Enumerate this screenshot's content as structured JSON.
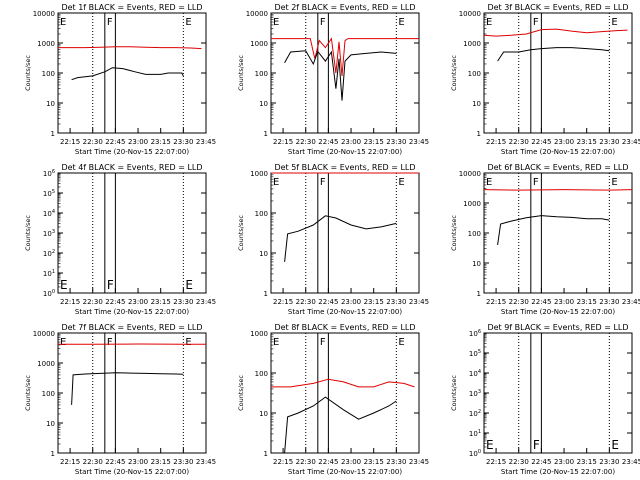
{
  "figure": {
    "xlabel": "Start Time (20-Nov-15 22:07:00)",
    "ylabel": "Counts/sec",
    "x_ticks": [
      "22:15",
      "22:30",
      "22:45",
      "23:00",
      "23:15",
      "23:30",
      "23:45"
    ],
    "markers": {
      "dotted_times": [
        "22:30",
        "23:30"
      ],
      "solid_times": [
        "22:38",
        "22:45"
      ]
    },
    "colors": {
      "events": "#000000",
      "lld": "#e00000"
    }
  },
  "chart_data": [
    {
      "type": "line",
      "title": "Det 1f BLACK = Events, RED = LLD",
      "y_scale": "log",
      "ylim": [
        1,
        10000
      ],
      "y_ticks": [
        "1",
        "10",
        "100",
        "1000",
        "10000"
      ],
      "letters": [
        "E",
        "F",
        "E"
      ],
      "series": [
        {
          "name": "LLD",
          "color": "#e00000",
          "x": [
            "22:07",
            "22:15",
            "22:25",
            "22:35",
            "22:45",
            "22:55",
            "23:05",
            "23:15",
            "23:25",
            "23:35",
            "23:42"
          ],
          "values": [
            700,
            700,
            700,
            720,
            750,
            750,
            720,
            700,
            700,
            680,
            650
          ]
        },
        {
          "name": "Events",
          "color": "#000000",
          "x": [
            "22:16",
            "22:20",
            "22:30",
            "22:38",
            "22:43",
            "22:50",
            "22:58",
            "23:05",
            "23:15",
            "23:20",
            "23:29",
            "23:30"
          ],
          "values": [
            60,
            70,
            80,
            110,
            150,
            140,
            110,
            90,
            90,
            100,
            100,
            80
          ]
        }
      ]
    },
    {
      "type": "line",
      "title": "Det 2f BLACK = Events, RED = LLD",
      "y_scale": "log",
      "ylim": [
        1,
        10000
      ],
      "y_ticks": [
        "1",
        "10",
        "100",
        "1000",
        "10000"
      ],
      "letters": [
        "E",
        "F",
        "E"
      ],
      "series": [
        {
          "name": "LLD",
          "color": "#e00000",
          "x": [
            "22:07",
            "22:25",
            "22:33",
            "22:36",
            "22:39",
            "22:43",
            "22:47",
            "22:50",
            "22:52",
            "22:54",
            "22:56",
            "22:58",
            "23:05",
            "23:30",
            "23:45"
          ],
          "values": [
            1400,
            1400,
            1400,
            300,
            1200,
            700,
            1400,
            100,
            1100,
            80,
            1200,
            1400,
            1400,
            1400,
            1400
          ]
        },
        {
          "name": "Events",
          "color": "#000000",
          "x": [
            "22:16",
            "22:20",
            "22:30",
            "22:35",
            "22:38",
            "22:43",
            "22:47",
            "22:50",
            "22:52",
            "22:54",
            "22:56",
            "23:00",
            "23:10",
            "23:20",
            "23:30"
          ],
          "values": [
            220,
            500,
            550,
            200,
            520,
            250,
            500,
            30,
            300,
            12,
            250,
            400,
            450,
            500,
            450
          ]
        }
      ]
    },
    {
      "type": "line",
      "title": "Det 3f BLACK = Events, RED = LLD",
      "y_scale": "log",
      "ylim": [
        1,
        10000
      ],
      "y_ticks": [
        "1",
        "10",
        "100",
        "1000",
        "10000"
      ],
      "letters": [
        "E",
        "F",
        "E"
      ],
      "series": [
        {
          "name": "LLD",
          "color": "#e00000",
          "x": [
            "22:07",
            "22:15",
            "22:25",
            "22:35",
            "22:45",
            "22:55",
            "23:05",
            "23:15",
            "23:25",
            "23:35",
            "23:42"
          ],
          "values": [
            1800,
            1700,
            1800,
            2000,
            2800,
            2900,
            2500,
            2200,
            2400,
            2600,
            2700
          ]
        },
        {
          "name": "Events",
          "color": "#000000",
          "x": [
            "22:16",
            "22:20",
            "22:30",
            "22:38",
            "22:45",
            "22:55",
            "23:05",
            "23:15",
            "23:25",
            "23:30"
          ],
          "values": [
            250,
            500,
            500,
            600,
            650,
            700,
            700,
            650,
            600,
            550
          ]
        }
      ]
    },
    {
      "type": "line",
      "title": "Det 4f BLACK = Events, RED = LLD",
      "y_scale": "log",
      "ylim": [
        1,
        1000000
      ],
      "y_ticks": [
        "10^0",
        "10^1",
        "10^2",
        "10^3",
        "10^4",
        "10^5",
        "10^6"
      ],
      "letters": [
        "E",
        "F",
        "E"
      ],
      "series": []
    },
    {
      "type": "line",
      "title": "Det 5f BLACK = Events, RED = LLD",
      "y_scale": "log",
      "ylim": [
        1,
        1000
      ],
      "y_ticks": [
        "1",
        "10",
        "100",
        "1000"
      ],
      "letters": [
        "E",
        "F",
        "E"
      ],
      "series": [
        {
          "name": "LLD",
          "color": "#e00000",
          "x": [
            "22:07",
            "22:30",
            "23:00",
            "23:30",
            "23:45"
          ],
          "values": [
            1000,
            1000,
            1000,
            1000,
            1000
          ]
        },
        {
          "name": "Events",
          "color": "#000000",
          "x": [
            "22:16",
            "22:18",
            "22:25",
            "22:35",
            "22:43",
            "22:50",
            "23:00",
            "23:10",
            "23:20",
            "23:30"
          ],
          "values": [
            6,
            30,
            35,
            50,
            85,
            75,
            50,
            40,
            45,
            55
          ]
        }
      ]
    },
    {
      "type": "line",
      "title": "Det 6f BLACK = Events, RED = LLD",
      "y_scale": "log",
      "ylim": [
        1,
        10000
      ],
      "y_ticks": [
        "1",
        "10",
        "100",
        "1000",
        "10000"
      ],
      "letters": [
        "E",
        "F",
        "E"
      ],
      "series": [
        {
          "name": "LLD",
          "color": "#e00000",
          "x": [
            "22:07",
            "22:30",
            "23:00",
            "23:30",
            "23:45"
          ],
          "values": [
            2800,
            2700,
            2800,
            2700,
            2800
          ]
        },
        {
          "name": "Events",
          "color": "#000000",
          "x": [
            "22:16",
            "22:18",
            "22:25",
            "22:35",
            "22:45",
            "22:55",
            "23:05",
            "23:15",
            "23:25",
            "23:30"
          ],
          "values": [
            40,
            200,
            250,
            320,
            380,
            350,
            330,
            300,
            300,
            270
          ]
        }
      ]
    },
    {
      "type": "line",
      "title": "Det 7f BLACK = Events, RED = LLD",
      "y_scale": "log",
      "ylim": [
        1,
        10000
      ],
      "y_ticks": [
        "1",
        "10",
        "100",
        "1000",
        "10000"
      ],
      "letters": [
        "E",
        "F",
        "E"
      ],
      "series": [
        {
          "name": "LLD",
          "color": "#e00000",
          "x": [
            "22:07",
            "22:30",
            "23:00",
            "23:30",
            "23:45"
          ],
          "values": [
            4200,
            4200,
            4300,
            4200,
            4200
          ]
        },
        {
          "name": "Events",
          "color": "#000000",
          "x": [
            "22:16",
            "22:17",
            "22:25",
            "22:35",
            "22:45",
            "22:55",
            "23:05",
            "23:15",
            "23:25",
            "23:30"
          ],
          "values": [
            40,
            400,
            430,
            450,
            470,
            460,
            450,
            440,
            430,
            420
          ]
        }
      ]
    },
    {
      "type": "line",
      "title": "Det 8f BLACK = Events, RED = LLD",
      "y_scale": "log",
      "ylim": [
        1,
        1000
      ],
      "y_ticks": [
        "1",
        "10",
        "100",
        "1000"
      ],
      "letters": [
        "E",
        "F",
        "E"
      ],
      "series": [
        {
          "name": "LLD",
          "color": "#e00000",
          "x": [
            "22:07",
            "22:20",
            "22:35",
            "22:45",
            "22:55",
            "23:05",
            "23:15",
            "23:25",
            "23:35",
            "23:42"
          ],
          "values": [
            45,
            45,
            55,
            70,
            60,
            45,
            45,
            60,
            55,
            45
          ]
        },
        {
          "name": "Events",
          "color": "#000000",
          "x": [
            "22:16",
            "22:18",
            "22:25",
            "22:35",
            "22:43",
            "22:55",
            "23:05",
            "23:15",
            "23:25",
            "23:30"
          ],
          "values": [
            1,
            8,
            10,
            15,
            25,
            12,
            7,
            10,
            15,
            20
          ]
        }
      ]
    },
    {
      "type": "line",
      "title": "Det 9f BLACK = Events, RED = LLD",
      "y_scale": "log",
      "ylim": [
        1,
        1000000
      ],
      "y_ticks": [
        "10^0",
        "10^1",
        "10^2",
        "10^3",
        "10^4",
        "10^5",
        "10^6"
      ],
      "letters": [
        "E",
        "F",
        "E"
      ],
      "series": []
    }
  ]
}
